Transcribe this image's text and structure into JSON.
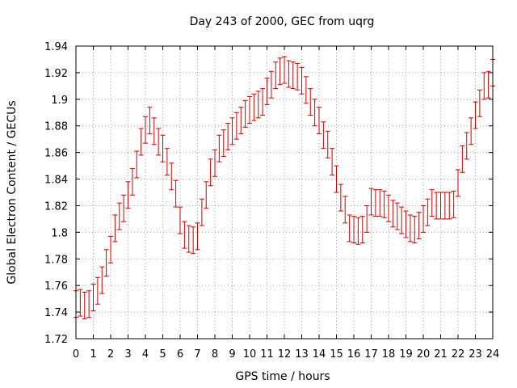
{
  "chart_data": {
    "type": "scatter",
    "title": "Day 243 of 2000, GEC from uqrg",
    "xlabel": "GPS time / hours",
    "ylabel": "Global Electron Content / GECUs",
    "xlim": [
      0,
      24
    ],
    "ylim": [
      1.72,
      1.94
    ],
    "x_ticks": [
      "0",
      "1",
      "2",
      "3",
      "4",
      "5",
      "6",
      "7",
      "8",
      "9",
      "10",
      "11",
      "12",
      "13",
      "14",
      "15",
      "16",
      "17",
      "18",
      "19",
      "20",
      "21",
      "22",
      "23",
      "24"
    ],
    "y_ticks": [
      "1.72",
      "1.74",
      "1.76",
      "1.78",
      "1.8",
      "1.82",
      "1.84",
      "1.86",
      "1.88",
      "1.9",
      "1.92",
      "1.94"
    ],
    "grid": true,
    "series_color": "#cc0000",
    "error_bar_halfwidth": 0.01,
    "x": [
      0.0,
      0.25,
      0.5,
      0.75,
      1.0,
      1.25,
      1.5,
      1.75,
      2.0,
      2.25,
      2.5,
      2.75,
      3.0,
      3.25,
      3.5,
      3.75,
      4.0,
      4.25,
      4.5,
      4.75,
      5.0,
      5.25,
      5.5,
      5.75,
      6.0,
      6.25,
      6.5,
      6.75,
      7.0,
      7.25,
      7.5,
      7.75,
      8.0,
      8.25,
      8.5,
      8.75,
      9.0,
      9.25,
      9.5,
      9.75,
      10.0,
      10.25,
      10.5,
      10.75,
      11.0,
      11.25,
      11.5,
      11.75,
      12.0,
      12.25,
      12.5,
      12.75,
      13.0,
      13.25,
      13.5,
      13.75,
      14.0,
      14.25,
      14.5,
      14.75,
      15.0,
      15.25,
      15.5,
      15.75,
      16.0,
      16.25,
      16.5,
      16.75,
      17.0,
      17.25,
      17.5,
      17.75,
      18.0,
      18.25,
      18.5,
      18.75,
      19.0,
      19.25,
      19.5,
      19.75,
      20.0,
      20.25,
      20.5,
      20.75,
      21.0,
      21.25,
      21.5,
      21.75,
      22.0,
      22.25,
      22.5,
      22.75,
      23.0,
      23.25,
      23.5,
      23.75,
      24.0
    ],
    "y": [
      1.746,
      1.747,
      1.745,
      1.746,
      1.751,
      1.756,
      1.764,
      1.777,
      1.787,
      1.803,
      1.812,
      1.818,
      1.828,
      1.838,
      1.851,
      1.868,
      1.877,
      1.884,
      1.876,
      1.868,
      1.863,
      1.853,
      1.842,
      1.829,
      1.809,
      1.798,
      1.795,
      1.794,
      1.797,
      1.815,
      1.828,
      1.845,
      1.852,
      1.863,
      1.867,
      1.872,
      1.876,
      1.88,
      1.884,
      1.889,
      1.892,
      1.894,
      1.896,
      1.898,
      1.906,
      1.911,
      1.918,
      1.921,
      1.922,
      1.919,
      1.918,
      1.917,
      1.914,
      1.907,
      1.898,
      1.89,
      1.884,
      1.873,
      1.866,
      1.853,
      1.84,
      1.826,
      1.817,
      1.803,
      1.802,
      1.801,
      1.802,
      1.81,
      1.823,
      1.822,
      1.822,
      1.821,
      1.818,
      1.814,
      1.812,
      1.809,
      1.806,
      1.803,
      1.802,
      1.805,
      1.81,
      1.815,
      1.822,
      1.82,
      1.82,
      1.82,
      1.82,
      1.821,
      1.837,
      1.855,
      1.865,
      1.876,
      1.888,
      1.897,
      1.91,
      1.911,
      1.92
    ]
  }
}
